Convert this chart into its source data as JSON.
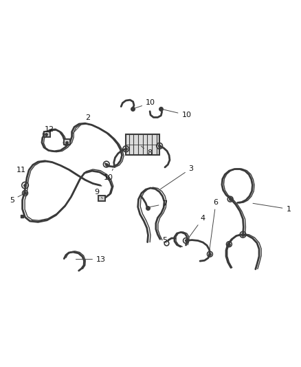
{
  "background_color": "#ffffff",
  "line_color": "#3a3a3a",
  "label_color": "#111111",
  "figsize": [
    4.38,
    5.33
  ],
  "dpi": 100,
  "lw_thick": 2.0,
  "lw_thin": 1.0,
  "lw_label": 0.7
}
